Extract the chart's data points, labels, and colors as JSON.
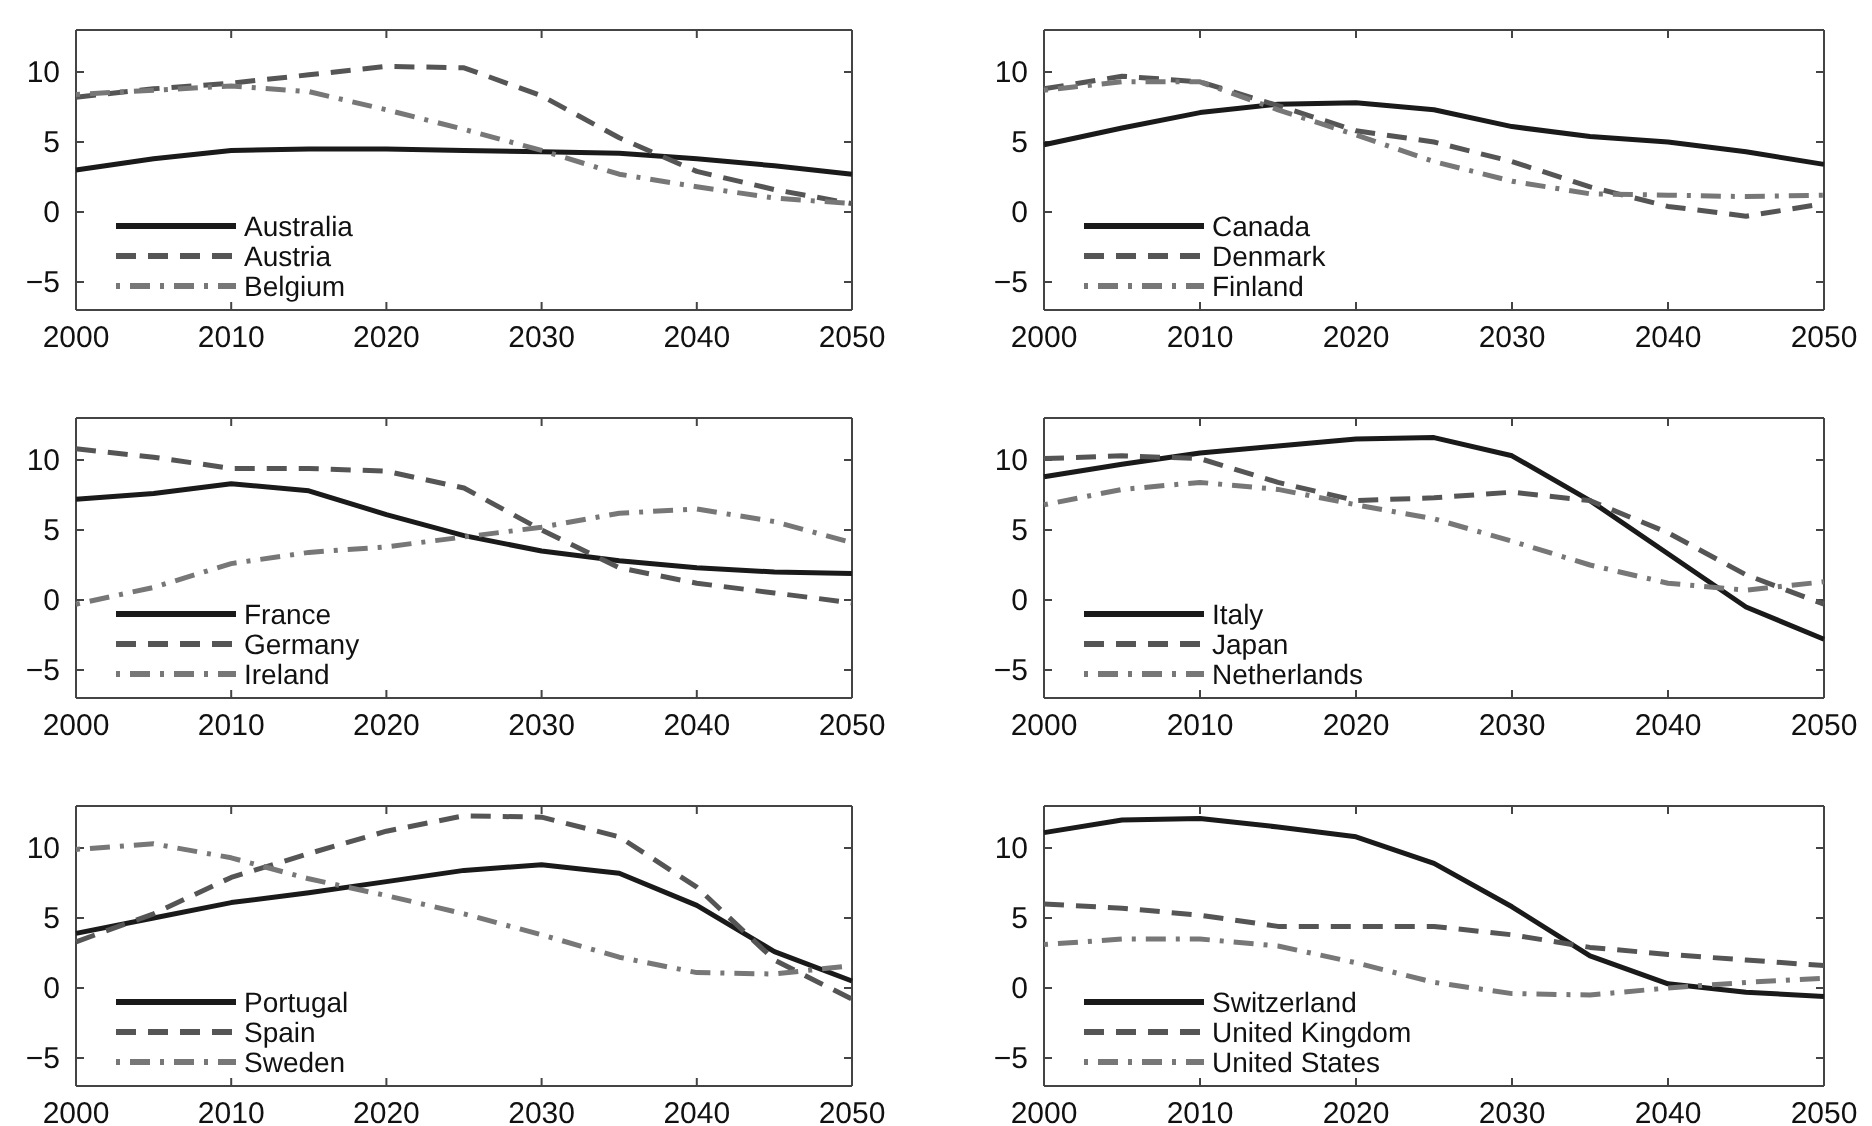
{
  "chart_data": [
    {
      "type": "line",
      "x": [
        2000,
        2005,
        2010,
        2015,
        2020,
        2025,
        2030,
        2035,
        2040,
        2045,
        2050
      ],
      "xlim": [
        2000,
        2050
      ],
      "xticks": [
        2000,
        2010,
        2020,
        2030,
        2040,
        2050
      ],
      "ylim": [
        -7,
        13
      ],
      "yticks": [
        -5,
        0,
        5,
        10
      ],
      "legend": "bottom left",
      "grid": false,
      "series": [
        {
          "name": "Australia",
          "color": "#1a1a1a",
          "line_style": "solid",
          "values": [
            3.0,
            3.8,
            4.4,
            4.5,
            4.5,
            4.4,
            4.3,
            4.2,
            3.8,
            3.3,
            2.7
          ]
        },
        {
          "name": "Austria",
          "color": "#555555",
          "line_style": "dashed",
          "values": [
            8.2,
            8.8,
            9.2,
            9.8,
            10.4,
            10.3,
            8.3,
            5.3,
            2.9,
            1.6,
            0.6
          ]
        },
        {
          "name": "Belgium",
          "color": "#777777",
          "line_style": "dashdot",
          "values": [
            8.4,
            8.7,
            9.0,
            8.6,
            7.3,
            5.9,
            4.4,
            2.7,
            1.8,
            1.0,
            0.6
          ]
        }
      ]
    },
    {
      "type": "line",
      "x": [
        2000,
        2005,
        2010,
        2015,
        2020,
        2025,
        2030,
        2035,
        2040,
        2045,
        2050
      ],
      "xlim": [
        2000,
        2050
      ],
      "xticks": [
        2000,
        2010,
        2020,
        2030,
        2040,
        2050
      ],
      "ylim": [
        -7,
        13
      ],
      "yticks": [
        -5,
        0,
        5,
        10
      ],
      "legend": "bottom left",
      "grid": false,
      "series": [
        {
          "name": "Canada",
          "color": "#1a1a1a",
          "line_style": "solid",
          "values": [
            4.8,
            6.0,
            7.1,
            7.7,
            7.8,
            7.3,
            6.1,
            5.4,
            5.0,
            4.3,
            3.4
          ]
        },
        {
          "name": "Denmark",
          "color": "#555555",
          "line_style": "dashed",
          "values": [
            8.8,
            9.7,
            9.3,
            7.6,
            5.8,
            5.0,
            3.6,
            1.8,
            0.4,
            -0.3,
            0.6
          ]
        },
        {
          "name": "Finland",
          "color": "#777777",
          "line_style": "dashdot",
          "values": [
            8.7,
            9.3,
            9.3,
            7.3,
            5.5,
            3.6,
            2.2,
            1.3,
            1.2,
            1.1,
            1.2
          ]
        }
      ]
    },
    {
      "type": "line",
      "x": [
        2000,
        2005,
        2010,
        2015,
        2020,
        2025,
        2030,
        2035,
        2040,
        2045,
        2050
      ],
      "xlim": [
        2000,
        2050
      ],
      "xticks": [
        2000,
        2010,
        2020,
        2030,
        2040,
        2050
      ],
      "ylim": [
        -7,
        13
      ],
      "yticks": [
        -5,
        0,
        5,
        10
      ],
      "legend": "bottom left",
      "grid": false,
      "series": [
        {
          "name": "France",
          "color": "#1a1a1a",
          "line_style": "solid",
          "values": [
            7.2,
            7.6,
            8.3,
            7.8,
            6.1,
            4.6,
            3.5,
            2.8,
            2.3,
            2.0,
            1.9
          ]
        },
        {
          "name": "Germany",
          "color": "#555555",
          "line_style": "dashed",
          "values": [
            10.8,
            10.2,
            9.4,
            9.4,
            9.2,
            8.0,
            5.0,
            2.3,
            1.2,
            0.5,
            -0.2
          ]
        },
        {
          "name": "Ireland",
          "color": "#777777",
          "line_style": "dashdot",
          "values": [
            -0.3,
            0.9,
            2.6,
            3.4,
            3.8,
            4.5,
            5.2,
            6.2,
            6.5,
            5.6,
            4.1
          ]
        }
      ]
    },
    {
      "type": "line",
      "x": [
        2000,
        2005,
        2010,
        2015,
        2020,
        2025,
        2030,
        2035,
        2040,
        2045,
        2050
      ],
      "xlim": [
        2000,
        2050
      ],
      "xticks": [
        2000,
        2010,
        2020,
        2030,
        2040,
        2050
      ],
      "ylim": [
        -7,
        13
      ],
      "yticks": [
        -5,
        0,
        5,
        10
      ],
      "legend": "bottom left",
      "grid": false,
      "series": [
        {
          "name": "Italy",
          "color": "#1a1a1a",
          "line_style": "solid",
          "values": [
            8.8,
            9.7,
            10.5,
            11.0,
            11.5,
            11.6,
            10.3,
            7.1,
            3.3,
            -0.5,
            -2.8
          ]
        },
        {
          "name": "Japan",
          "color": "#555555",
          "line_style": "dashed",
          "values": [
            10.1,
            10.3,
            10.1,
            8.4,
            7.1,
            7.3,
            7.7,
            7.1,
            4.8,
            1.8,
            -0.3
          ]
        },
        {
          "name": "Netherlands",
          "color": "#777777",
          "line_style": "dashdot",
          "values": [
            6.8,
            7.9,
            8.4,
            7.9,
            6.8,
            5.8,
            4.2,
            2.5,
            1.2,
            0.7,
            1.3
          ]
        }
      ]
    },
    {
      "type": "line",
      "x": [
        2000,
        2005,
        2010,
        2015,
        2020,
        2025,
        2030,
        2035,
        2040,
        2045,
        2050
      ],
      "xlim": [
        2000,
        2050
      ],
      "xticks": [
        2000,
        2010,
        2020,
        2030,
        2040,
        2050
      ],
      "ylim": [
        -7,
        13
      ],
      "yticks": [
        -5,
        0,
        5,
        10
      ],
      "legend": "bottom left",
      "grid": false,
      "series": [
        {
          "name": "Portugal",
          "color": "#1a1a1a",
          "line_style": "solid",
          "values": [
            3.9,
            5.0,
            6.1,
            6.8,
            7.6,
            8.4,
            8.8,
            8.2,
            5.9,
            2.6,
            0.5
          ]
        },
        {
          "name": "Spain",
          "color": "#555555",
          "line_style": "dashed",
          "values": [
            3.3,
            5.3,
            7.9,
            9.6,
            11.2,
            12.3,
            12.2,
            10.8,
            7.2,
            2.0,
            -0.8
          ]
        },
        {
          "name": "Sweden",
          "color": "#777777",
          "line_style": "dashdot",
          "values": [
            9.9,
            10.3,
            9.3,
            7.8,
            6.6,
            5.3,
            3.8,
            2.2,
            1.1,
            1.0,
            1.6
          ]
        }
      ]
    },
    {
      "type": "line",
      "x": [
        2000,
        2005,
        2010,
        2015,
        2020,
        2025,
        2030,
        2035,
        2040,
        2045,
        2050
      ],
      "xlim": [
        2000,
        2050
      ],
      "xticks": [
        2000,
        2010,
        2020,
        2030,
        2040,
        2050
      ],
      "ylim": [
        -7,
        13
      ],
      "yticks": [
        -5,
        0,
        5,
        10
      ],
      "legend": "bottom left",
      "grid": false,
      "series": [
        {
          "name": "Switzerland",
          "color": "#1a1a1a",
          "line_style": "solid",
          "values": [
            11.1,
            12.0,
            12.1,
            11.5,
            10.8,
            8.9,
            5.8,
            2.3,
            0.3,
            -0.3,
            -0.6
          ]
        },
        {
          "name": "United Kingdom",
          "color": "#555555",
          "line_style": "dashed",
          "values": [
            6.0,
            5.7,
            5.2,
            4.4,
            4.4,
            4.4,
            3.8,
            2.9,
            2.4,
            2.0,
            1.6
          ]
        },
        {
          "name": "United States",
          "color": "#777777",
          "line_style": "dashdot",
          "values": [
            3.1,
            3.5,
            3.5,
            3.0,
            1.8,
            0.4,
            -0.4,
            -0.5,
            0.0,
            0.4,
            0.7
          ]
        }
      ]
    }
  ]
}
